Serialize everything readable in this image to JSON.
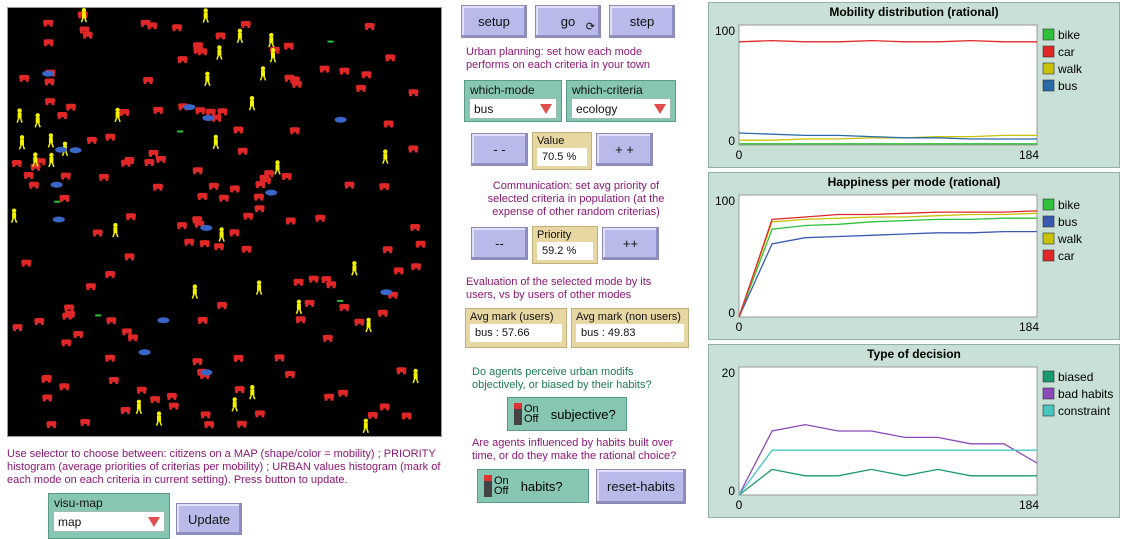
{
  "buttons": {
    "setup": "setup",
    "go": "go",
    "step": "step",
    "update": "Update",
    "reset_habits": "reset-habits"
  },
  "notes": {
    "urban": "Urban planning: set how each mode performs on each criteria in your town",
    "communication": "Communication: set avg priority of selected criteria in population (at the expense of other random criterias)",
    "evaluation": "Evaluation of the selected mode by its users, vs by users of other modes",
    "objective": "Do agents perceive urban modifs objectively, or biased by their habits?",
    "habits": "Are agents influenced by habits built over time, or do they make the rational choice?",
    "selector": "Use selector to choose between: citizens on a MAP (shape/color = mobility) ; PRIORITY histogram (average priorities of criterias per mobility) ; URBAN values histogram (mark of each mode on each criteria in current setting). Press button to update."
  },
  "choosers": {
    "which_mode": {
      "label": "which-mode",
      "value": "bus"
    },
    "which_criteria": {
      "label": "which-criteria",
      "value": "ecology"
    },
    "visu_map": {
      "label": "visu-map",
      "value": "map"
    }
  },
  "value_row": {
    "minus": "- -",
    "plus": "+ +",
    "label": "Value",
    "value": "70.5 %"
  },
  "priority_row": {
    "minus": "--",
    "plus": "++",
    "label": "Priority",
    "value": "59.2 %"
  },
  "avg_users": {
    "label": "Avg mark (users)",
    "value": "bus : 57.66"
  },
  "avg_non_users": {
    "label": "Avg mark (non users)",
    "value": "bus : 49.83"
  },
  "switches": {
    "subjective": {
      "on": "On",
      "off": "Off",
      "label": "subjective?"
    },
    "habits": {
      "on": "On",
      "off": "Off",
      "label": "habits?"
    }
  },
  "icons": {
    "forever": "forever-loop-icon",
    "switch": "toggle-switch-icon",
    "dropdown": "dropdown-triangle-icon"
  },
  "agents_colors": {
    "car": "#e02727",
    "walk": "#f2f200",
    "bus": "#3a66c8",
    "bike": "#2ec23a"
  },
  "chart_data": [
    {
      "type": "line",
      "title": "Mobility distribution (rational)",
      "xlim": [
        0,
        184
      ],
      "ylim": [
        0,
        100
      ],
      "x_ticks": [
        "0",
        "184"
      ],
      "y_ticks": [
        "0",
        "100"
      ],
      "legend": "top-right",
      "series": [
        {
          "name": "bike",
          "color": "#2ec23a",
          "values": [
            1,
            1,
            1,
            1,
            1,
            1,
            1,
            1,
            1,
            1
          ]
        },
        {
          "name": "car",
          "color": "#e02727",
          "values": [
            86,
            87,
            86,
            86,
            87,
            86,
            86,
            87,
            86,
            86
          ]
        },
        {
          "name": "walk",
          "color": "#c8c20a",
          "values": [
            4,
            4,
            5,
            5,
            6,
            6,
            7,
            7,
            8,
            8
          ]
        },
        {
          "name": "bus",
          "color": "#2a6aa8",
          "values": [
            10,
            9,
            8,
            8,
            7,
            6,
            6,
            5,
            5,
            5
          ]
        }
      ]
    },
    {
      "type": "line",
      "title": "Happiness per mode (rational)",
      "xlim": [
        0,
        184
      ],
      "ylim": [
        0,
        100
      ],
      "x_ticks": [
        "0",
        "184"
      ],
      "y_ticks": [
        "0",
        "100"
      ],
      "legend": "top-right",
      "series": [
        {
          "name": "bike",
          "color": "#2ec23a",
          "values": [
            0,
            72,
            75,
            76,
            78,
            79,
            80,
            80,
            81,
            81
          ]
        },
        {
          "name": "bus",
          "color": "#3a5ab0",
          "values": [
            0,
            60,
            65,
            66,
            67,
            68,
            69,
            69,
            70,
            70
          ]
        },
        {
          "name": "walk",
          "color": "#c8c20a",
          "values": [
            0,
            78,
            80,
            81,
            82,
            82,
            83,
            84,
            84,
            85
          ]
        },
        {
          "name": "car",
          "color": "#e02727",
          "values": [
            0,
            80,
            82,
            84,
            84,
            85,
            86,
            86,
            86,
            87
          ]
        }
      ]
    },
    {
      "type": "line",
      "title": "Type of decision",
      "xlim": [
        0,
        184
      ],
      "ylim": [
        0,
        20
      ],
      "x_ticks": [
        "0",
        "184"
      ],
      "y_ticks": [
        "0",
        "20"
      ],
      "legend": "top-right",
      "series": [
        {
          "name": "biased",
          "color": "#1a9a6a",
          "values": [
            0,
            4,
            3,
            3,
            4,
            3,
            4,
            3,
            3,
            3
          ]
        },
        {
          "name": "bad habits",
          "color": "#8a4ab8",
          "values": [
            0,
            10,
            11,
            10,
            10,
            9,
            9,
            8,
            8,
            5
          ]
        },
        {
          "name": "constraint",
          "color": "#47c7c0",
          "values": [
            0,
            7,
            7,
            7,
            7,
            7,
            7,
            7,
            7,
            7
          ]
        }
      ]
    }
  ]
}
